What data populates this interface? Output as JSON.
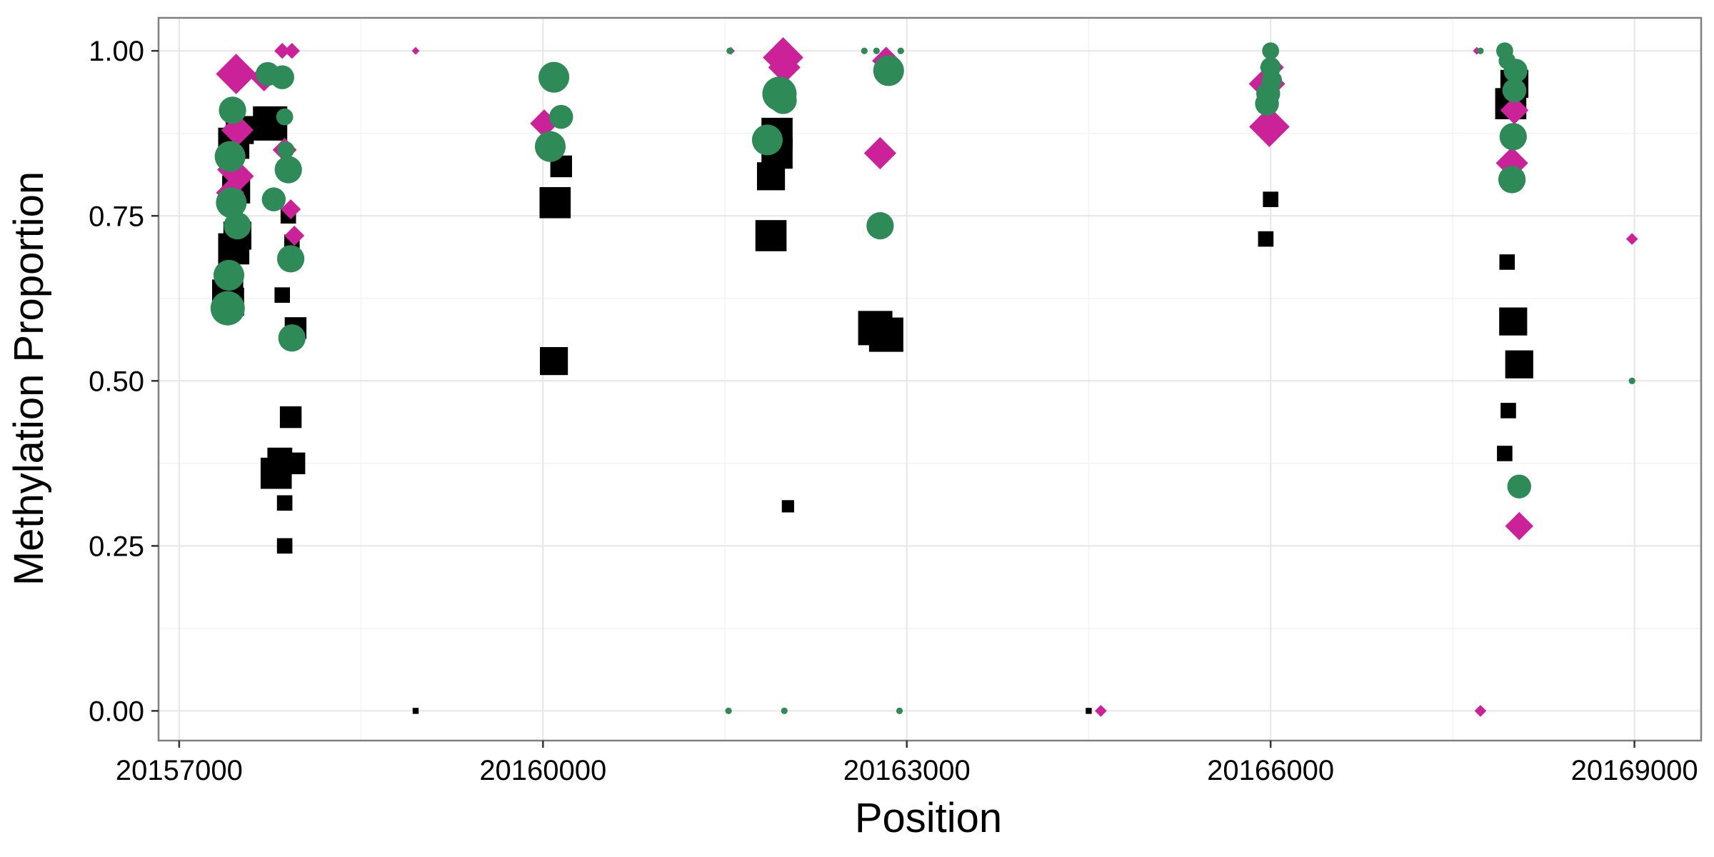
{
  "chart_data": {
    "type": "scatter",
    "title": "",
    "xlabel": "Position",
    "ylabel": "Methylation Proportion",
    "xlim": [
      20156830,
      20169550
    ],
    "ylim": [
      -0.045,
      1.05
    ],
    "x_ticks": [
      20157000,
      20160000,
      20163000,
      20166000,
      20169000
    ],
    "x_tick_labels": [
      "20157000",
      "20160000",
      "20163000",
      "20166000",
      "20169000"
    ],
    "y_ticks": [
      0,
      0.25,
      0.5,
      0.75,
      1.0
    ],
    "y_tick_labels": [
      "0.00",
      "0.25",
      "0.50",
      "0.75",
      "1.00"
    ],
    "grid": true,
    "legend": "none",
    "colors": {
      "series_black": "#000000",
      "series_magenta": "#cc2299",
      "series_green": "#2e8b57",
      "panel_border": "#7f7f7f",
      "grid_major": "#e6e6e6",
      "grid_minor": "#f3f3f3"
    },
    "series": [
      {
        "name": "black-square-series",
        "shape": "square",
        "color": "#000000",
        "points": [
          {
            "x": 20157400,
            "y": 0.63,
            "size": 9
          },
          {
            "x": 20157420,
            "y": 0.62,
            "size": 8
          },
          {
            "x": 20157450,
            "y": 0.7,
            "size": 9
          },
          {
            "x": 20157450,
            "y": 0.86,
            "size": 9
          },
          {
            "x": 20157470,
            "y": 0.79,
            "size": 8
          },
          {
            "x": 20157480,
            "y": 0.72,
            "size": 8
          },
          {
            "x": 20157500,
            "y": 0.88,
            "size": 8
          },
          {
            "x": 20157750,
            "y": 0.89,
            "size": 10
          },
          {
            "x": 20157800,
            "y": 0.36,
            "size": 9
          },
          {
            "x": 20157830,
            "y": 0.38,
            "size": 7
          },
          {
            "x": 20157850,
            "y": 0.63,
            "size": 4
          },
          {
            "x": 20157870,
            "y": 0.25,
            "size": 4
          },
          {
            "x": 20157870,
            "y": 0.315,
            "size": 4
          },
          {
            "x": 20157900,
            "y": 0.75,
            "size": 4
          },
          {
            "x": 20157920,
            "y": 0.445,
            "size": 6
          },
          {
            "x": 20157930,
            "y": 0.71,
            "size": 4
          },
          {
            "x": 20157950,
            "y": 0.375,
            "size": 6
          },
          {
            "x": 20157960,
            "y": 0.58,
            "size": 6
          },
          {
            "x": 20158950,
            "y": 0.0,
            "size": 1
          },
          {
            "x": 20160090,
            "y": 0.53,
            "size": 8
          },
          {
            "x": 20160100,
            "y": 0.77,
            "size": 9
          },
          {
            "x": 20160150,
            "y": 0.825,
            "size": 6
          },
          {
            "x": 20161880,
            "y": 0.72,
            "size": 9
          },
          {
            "x": 20161880,
            "y": 0.81,
            "size": 8
          },
          {
            "x": 20161930,
            "y": 0.845,
            "size": 9
          },
          {
            "x": 20161930,
            "y": 0.875,
            "size": 9
          },
          {
            "x": 20162020,
            "y": 0.31,
            "size": 3
          },
          {
            "x": 20162740,
            "y": 0.58,
            "size": 10
          },
          {
            "x": 20162830,
            "y": 0.57,
            "size": 10
          },
          {
            "x": 20164500,
            "y": 0.0,
            "size": 1
          },
          {
            "x": 20165960,
            "y": 0.715,
            "size": 4
          },
          {
            "x": 20166000,
            "y": 0.775,
            "size": 4
          },
          {
            "x": 20167930,
            "y": 0.39,
            "size": 4
          },
          {
            "x": 20167950,
            "y": 0.68,
            "size": 4
          },
          {
            "x": 20167960,
            "y": 0.455,
            "size": 4
          },
          {
            "x": 20168000,
            "y": 0.59,
            "size": 8
          },
          {
            "x": 20168050,
            "y": 0.525,
            "size": 8
          },
          {
            "x": 20167980,
            "y": 0.92,
            "size": 9
          },
          {
            "x": 20168010,
            "y": 0.95,
            "size": 8
          },
          {
            "x": 20167730,
            "y": 0.0,
            "size": 1
          }
        ]
      },
      {
        "name": "magenta-diamond-series",
        "shape": "diamond",
        "color": "#cc2299",
        "points": [
          {
            "x": 20157420,
            "y": 0.785,
            "size": 6
          },
          {
            "x": 20157430,
            "y": 0.82,
            "size": 6
          },
          {
            "x": 20157470,
            "y": 0.965,
            "size": 9
          },
          {
            "x": 20157480,
            "y": 0.88,
            "size": 7
          },
          {
            "x": 20157500,
            "y": 0.81,
            "size": 6
          },
          {
            "x": 20157700,
            "y": 0.96,
            "size": 6
          },
          {
            "x": 20157850,
            "y": 1.0,
            "size": 3
          },
          {
            "x": 20157870,
            "y": 0.85,
            "size": 5
          },
          {
            "x": 20157920,
            "y": 0.76,
            "size": 4
          },
          {
            "x": 20157930,
            "y": 1.0,
            "size": 3
          },
          {
            "x": 20157950,
            "y": 0.72,
            "size": 4
          },
          {
            "x": 20158950,
            "y": 1.0,
            "size": 1
          },
          {
            "x": 20160010,
            "y": 0.89,
            "size": 6
          },
          {
            "x": 20161550,
            "y": 1.0,
            "size": 1
          },
          {
            "x": 20161980,
            "y": 0.99,
            "size": 9
          },
          {
            "x": 20161990,
            "y": 0.975,
            "size": 7
          },
          {
            "x": 20162780,
            "y": 0.845,
            "size": 7
          },
          {
            "x": 20162830,
            "y": 0.985,
            "size": 6
          },
          {
            "x": 20164600,
            "y": 0.0,
            "size": 2
          },
          {
            "x": 20165990,
            "y": 0.885,
            "size": 9
          },
          {
            "x": 20165970,
            "y": 0.95,
            "size": 8
          },
          {
            "x": 20166010,
            "y": 0.975,
            "size": 5
          },
          {
            "x": 20167700,
            "y": 1.0,
            "size": 1
          },
          {
            "x": 20167730,
            "y": 0.0,
            "size": 2
          },
          {
            "x": 20167990,
            "y": 0.83,
            "size": 7
          },
          {
            "x": 20168010,
            "y": 0.91,
            "size": 6
          },
          {
            "x": 20168050,
            "y": 0.28,
            "size": 6
          },
          {
            "x": 20168980,
            "y": 0.715,
            "size": 2
          }
        ]
      },
      {
        "name": "green-circle-series",
        "shape": "circle",
        "color": "#2e8b57",
        "points": [
          {
            "x": 20157400,
            "y": 0.61,
            "size": 9
          },
          {
            "x": 20157410,
            "y": 0.66,
            "size": 8
          },
          {
            "x": 20157420,
            "y": 0.84,
            "size": 8
          },
          {
            "x": 20157430,
            "y": 0.77,
            "size": 8
          },
          {
            "x": 20157440,
            "y": 0.91,
            "size": 7
          },
          {
            "x": 20157480,
            "y": 0.735,
            "size": 7
          },
          {
            "x": 20157730,
            "y": 0.965,
            "size": 6
          },
          {
            "x": 20157780,
            "y": 0.775,
            "size": 6
          },
          {
            "x": 20157850,
            "y": 0.96,
            "size": 6
          },
          {
            "x": 20157870,
            "y": 0.9,
            "size": 4
          },
          {
            "x": 20157880,
            "y": 0.85,
            "size": 4
          },
          {
            "x": 20157900,
            "y": 0.82,
            "size": 7
          },
          {
            "x": 20157920,
            "y": 0.685,
            "size": 7
          },
          {
            "x": 20157930,
            "y": 0.565,
            "size": 7
          },
          {
            "x": 20160060,
            "y": 0.855,
            "size": 8
          },
          {
            "x": 20160090,
            "y": 0.96,
            "size": 8
          },
          {
            "x": 20160150,
            "y": 0.9,
            "size": 6
          },
          {
            "x": 20161530,
            "y": 0.0,
            "size": 1
          },
          {
            "x": 20161540,
            "y": 1.0,
            "size": 1
          },
          {
            "x": 20161850,
            "y": 0.865,
            "size": 8
          },
          {
            "x": 20161950,
            "y": 0.935,
            "size": 9
          },
          {
            "x": 20161980,
            "y": 0.925,
            "size": 7
          },
          {
            "x": 20161990,
            "y": 0.0,
            "size": 1
          },
          {
            "x": 20162650,
            "y": 1.0,
            "size": 1
          },
          {
            "x": 20162750,
            "y": 1.0,
            "size": 1
          },
          {
            "x": 20162850,
            "y": 0.97,
            "size": 8
          },
          {
            "x": 20162780,
            "y": 0.735,
            "size": 7
          },
          {
            "x": 20162950,
            "y": 1.0,
            "size": 1
          },
          {
            "x": 20162940,
            "y": 0.0,
            "size": 1
          },
          {
            "x": 20165970,
            "y": 0.92,
            "size": 6
          },
          {
            "x": 20165980,
            "y": 0.935,
            "size": 6
          },
          {
            "x": 20166000,
            "y": 1.0,
            "size": 4
          },
          {
            "x": 20166000,
            "y": 0.975,
            "size": 5
          },
          {
            "x": 20166010,
            "y": 0.955,
            "size": 5
          },
          {
            "x": 20167930,
            "y": 1.0,
            "size": 4
          },
          {
            "x": 20167950,
            "y": 0.985,
            "size": 4
          },
          {
            "x": 20167990,
            "y": 0.805,
            "size": 7
          },
          {
            "x": 20168000,
            "y": 0.87,
            "size": 7
          },
          {
            "x": 20168010,
            "y": 0.94,
            "size": 6
          },
          {
            "x": 20168020,
            "y": 0.97,
            "size": 6
          },
          {
            "x": 20168050,
            "y": 0.34,
            "size": 6
          },
          {
            "x": 20167730,
            "y": 1.0,
            "size": 1
          },
          {
            "x": 20168980,
            "y": 0.5,
            "size": 1
          }
        ]
      }
    ]
  }
}
